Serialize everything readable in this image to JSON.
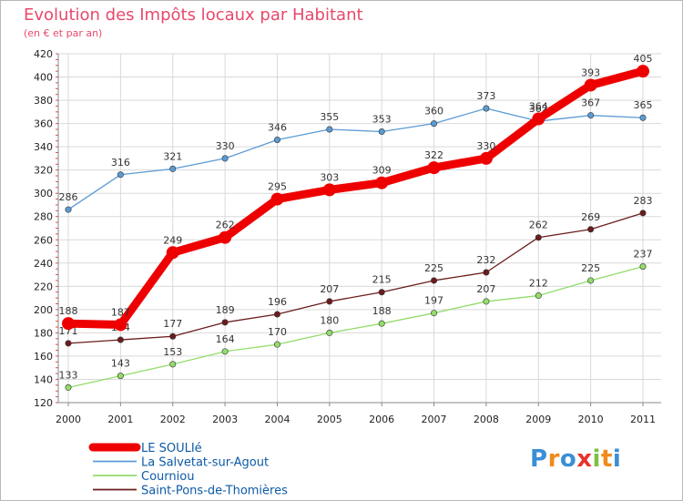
{
  "chart_data": {
    "type": "line",
    "title": "Evolution des Impôts locaux par Habitant",
    "subtitle": "(en € et par an)",
    "x": [
      "2000",
      "2001",
      "2002",
      "2003",
      "2004",
      "2005",
      "2006",
      "2007",
      "2008",
      "2009",
      "2010",
      "2011"
    ],
    "ylim": [
      120,
      420
    ],
    "yticks": [
      120,
      140,
      160,
      180,
      200,
      220,
      240,
      260,
      280,
      300,
      320,
      340,
      360,
      380,
      400,
      420
    ],
    "grid": true,
    "legend_position": "bottom-left",
    "series": [
      {
        "name": "LE SOULIé",
        "color": "#ee0000",
        "values": [
          188,
          187,
          249,
          262,
          295,
          303,
          309,
          322,
          330,
          364,
          393,
          405
        ]
      },
      {
        "name": "La Salvetat-sur-Agout",
        "color": "#5b9bd5",
        "values": [
          286,
          316,
          321,
          330,
          346,
          355,
          353,
          360,
          373,
          362,
          367,
          365
        ]
      },
      {
        "name": "Courniou",
        "color": "#93dc6b",
        "values": [
          133,
          143,
          153,
          164,
          170,
          180,
          188,
          197,
          207,
          212,
          225,
          237
        ]
      },
      {
        "name": "Saint-Pons-de-Thomières",
        "color": "#6b1c1c",
        "values": [
          171,
          174,
          177,
          189,
          196,
          207,
          215,
          225,
          232,
          262,
          269,
          283
        ]
      }
    ]
  },
  "logo": {
    "text": "Proxiti",
    "letters": [
      "P",
      "r",
      "o",
      "x",
      "i",
      "t",
      "i"
    ],
    "colors": [
      "#3a8fd6",
      "#f08a1c",
      "#3a8fd6",
      "#e8332d",
      "#7cc242",
      "#f08a1c",
      "#3a8fd6"
    ]
  }
}
